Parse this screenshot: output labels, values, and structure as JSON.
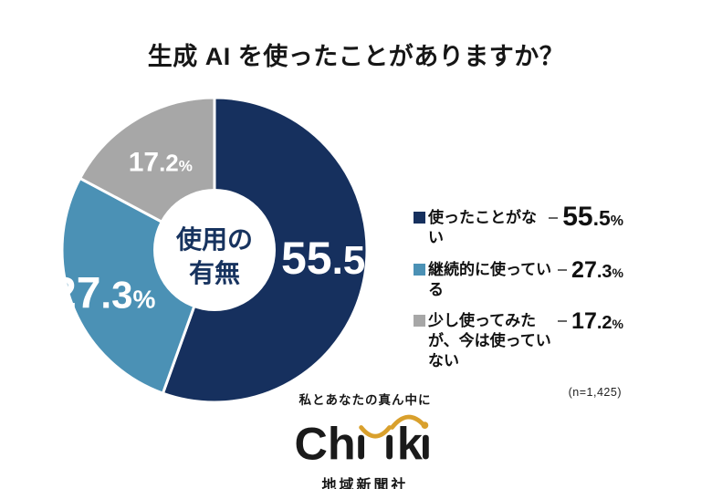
{
  "chart_data": {
    "type": "pie",
    "subtype": "donut",
    "title": "生成 AI を使ったことがありますか？",
    "center_label": "使用の有無",
    "center_label_lines": [
      "使用の",
      "有無"
    ],
    "categories": [
      "使ったことがない",
      "継続的に使っている",
      "少し使ってみたが、今は使っていない"
    ],
    "values": [
      55.5,
      27.3,
      17.2
    ],
    "unit": "%",
    "colors": [
      "#16305e",
      "#4b91b5",
      "#a7a7a7"
    ],
    "start_angle_deg": 0,
    "direction": "clockwise",
    "legend_position": "right",
    "note": "(n=1,425)"
  },
  "footer": {
    "tagline": "私とあなたの真ん中に",
    "logo_text": "Chiiki",
    "logo_parts": {
      "ch": "Ch",
      "k": "k"
    },
    "company": "地域新聞社",
    "accent_color": "#d9a02c"
  }
}
